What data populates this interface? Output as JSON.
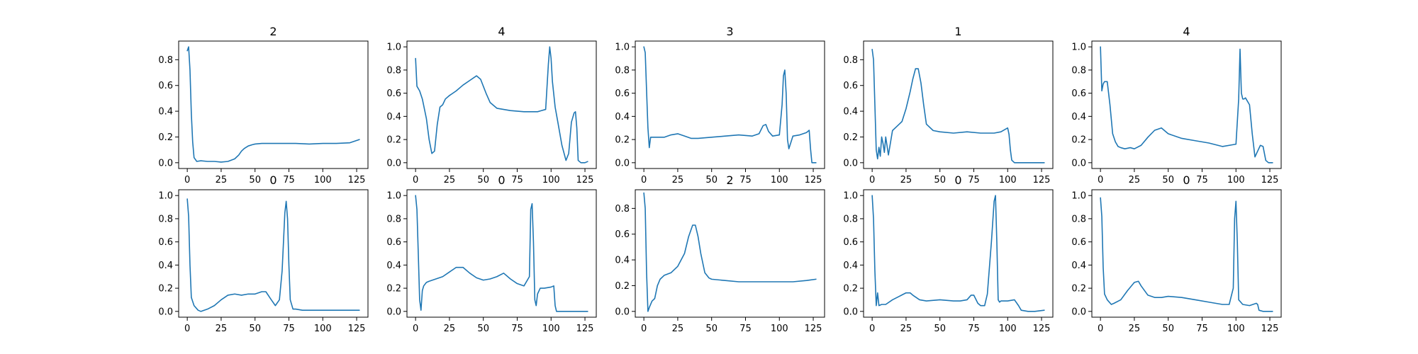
{
  "figure": {
    "line_color": "#1f77b4"
  },
  "chart_data": [
    {
      "type": "line",
      "title": "2",
      "xlim": [
        -6.35,
        133.35
      ],
      "ylim": [
        -0.045,
        0.945
      ],
      "xticks": [
        0,
        25,
        50,
        75,
        100,
        125
      ],
      "yticks": [
        0.0,
        0.2,
        0.4,
        0.6,
        0.8
      ],
      "x": [
        0,
        1,
        2,
        3,
        4,
        5,
        7,
        10,
        15,
        20,
        25,
        30,
        35,
        38,
        40,
        42,
        45,
        48,
        50,
        55,
        60,
        70,
        80,
        90,
        100,
        110,
        120,
        127
      ],
      "values": [
        0.87,
        0.9,
        0.72,
        0.38,
        0.16,
        0.04,
        0.01,
        0.015,
        0.01,
        0.01,
        0.005,
        0.01,
        0.03,
        0.06,
        0.09,
        0.11,
        0.13,
        0.14,
        0.145,
        0.15,
        0.15,
        0.15,
        0.15,
        0.145,
        0.15,
        0.15,
        0.155,
        0.18
      ]
    },
    {
      "type": "line",
      "title": "4",
      "xlim": [
        -6.35,
        133.35
      ],
      "ylim": [
        -0.05,
        1.05
      ],
      "xticks": [
        0,
        25,
        50,
        75,
        100,
        125
      ],
      "yticks": [
        0.0,
        0.2,
        0.4,
        0.6,
        0.8,
        1.0
      ],
      "x": [
        0,
        1,
        3,
        5,
        8,
        10,
        12,
        14,
        16,
        18,
        20,
        22,
        25,
        30,
        35,
        40,
        45,
        48,
        52,
        55,
        60,
        70,
        80,
        90,
        96,
        98,
        99,
        100,
        101,
        103,
        105,
        108,
        111,
        113,
        115,
        117,
        118,
        119,
        120,
        122,
        125,
        127
      ],
      "values": [
        0.9,
        0.66,
        0.62,
        0.55,
        0.38,
        0.2,
        0.08,
        0.1,
        0.33,
        0.48,
        0.5,
        0.55,
        0.58,
        0.62,
        0.67,
        0.71,
        0.75,
        0.72,
        0.6,
        0.52,
        0.47,
        0.45,
        0.44,
        0.44,
        0.46,
        0.85,
        1.0,
        0.9,
        0.7,
        0.48,
        0.35,
        0.15,
        0.02,
        0.08,
        0.35,
        0.43,
        0.44,
        0.3,
        0.02,
        0.0,
        0.0,
        0.01
      ]
    },
    {
      "type": "line",
      "title": "3",
      "xlim": [
        -6.35,
        133.35
      ],
      "ylim": [
        -0.05,
        1.05
      ],
      "xticks": [
        0,
        25,
        50,
        75,
        100,
        125
      ],
      "yticks": [
        0.0,
        0.2,
        0.4,
        0.6,
        0.8,
        1.0
      ],
      "x": [
        0,
        1,
        2,
        3,
        4,
        5,
        8,
        15,
        20,
        25,
        30,
        35,
        40,
        50,
        60,
        70,
        80,
        85,
        88,
        90,
        92,
        95,
        100,
        102,
        103,
        104,
        105,
        106,
        107,
        110,
        115,
        120,
        122,
        123,
        124,
        127
      ],
      "values": [
        1.0,
        0.95,
        0.62,
        0.3,
        0.13,
        0.22,
        0.22,
        0.22,
        0.24,
        0.25,
        0.23,
        0.21,
        0.21,
        0.22,
        0.23,
        0.24,
        0.23,
        0.25,
        0.32,
        0.33,
        0.27,
        0.23,
        0.24,
        0.5,
        0.75,
        0.8,
        0.6,
        0.2,
        0.12,
        0.23,
        0.24,
        0.26,
        0.28,
        0.12,
        0.0,
        0.0
      ]
    },
    {
      "type": "line",
      "title": "1",
      "xlim": [
        -6.35,
        133.35
      ],
      "ylim": [
        -0.045,
        0.945
      ],
      "xticks": [
        0,
        25,
        50,
        75,
        100,
        125
      ],
      "yticks": [
        0.0,
        0.2,
        0.4,
        0.6,
        0.8
      ],
      "x": [
        0,
        1,
        2,
        3,
        4,
        5,
        6,
        7,
        8,
        9,
        10,
        12,
        15,
        18,
        20,
        22,
        25,
        28,
        30,
        32,
        34,
        36,
        38,
        40,
        45,
        50,
        60,
        70,
        80,
        90,
        95,
        100,
        101,
        102,
        103,
        105,
        110,
        120,
        127
      ],
      "values": [
        0.88,
        0.8,
        0.45,
        0.1,
        0.03,
        0.12,
        0.05,
        0.2,
        0.15,
        0.08,
        0.2,
        0.06,
        0.25,
        0.28,
        0.3,
        0.32,
        0.42,
        0.55,
        0.65,
        0.73,
        0.73,
        0.62,
        0.45,
        0.3,
        0.25,
        0.24,
        0.23,
        0.24,
        0.23,
        0.23,
        0.24,
        0.27,
        0.22,
        0.1,
        0.02,
        0.0,
        0.0,
        0.0,
        0.0
      ]
    },
    {
      "type": "line",
      "title": "4",
      "xlim": [
        -6.35,
        133.35
      ],
      "ylim": [
        -0.05,
        1.05
      ],
      "xticks": [
        0,
        25,
        50,
        75,
        100,
        125
      ],
      "yticks": [
        0.0,
        0.2,
        0.4,
        0.6,
        0.8,
        1.0
      ],
      "x": [
        0,
        1,
        2,
        3,
        5,
        7,
        9,
        11,
        13,
        15,
        18,
        22,
        25,
        30,
        35,
        40,
        45,
        50,
        60,
        70,
        80,
        90,
        100,
        102,
        103,
        104,
        105,
        106,
        107,
        110,
        112,
        114,
        116,
        118,
        120,
        122,
        124,
        127
      ],
      "values": [
        1.0,
        0.62,
        0.68,
        0.7,
        0.7,
        0.5,
        0.25,
        0.18,
        0.14,
        0.13,
        0.12,
        0.13,
        0.12,
        0.15,
        0.22,
        0.28,
        0.3,
        0.25,
        0.21,
        0.19,
        0.17,
        0.14,
        0.16,
        0.55,
        0.98,
        0.6,
        0.55,
        0.55,
        0.56,
        0.5,
        0.25,
        0.05,
        0.1,
        0.15,
        0.14,
        0.02,
        0.0,
        0.0
      ]
    },
    {
      "type": "line",
      "title": "0",
      "xlim": [
        -6.35,
        133.35
      ],
      "ylim": [
        -0.05,
        1.05
      ],
      "xticks": [
        0,
        25,
        50,
        75,
        100,
        125
      ],
      "yticks": [
        0.0,
        0.2,
        0.4,
        0.6,
        0.8,
        1.0
      ],
      "x": [
        0,
        1,
        2,
        3,
        5,
        8,
        10,
        15,
        20,
        25,
        30,
        35,
        40,
        45,
        50,
        55,
        58,
        62,
        65,
        68,
        70,
        72,
        73,
        74,
        75,
        76,
        78,
        80,
        85,
        90,
        100,
        110,
        120,
        127
      ],
      "values": [
        0.97,
        0.82,
        0.4,
        0.12,
        0.05,
        0.01,
        0.0,
        0.02,
        0.05,
        0.1,
        0.14,
        0.15,
        0.14,
        0.15,
        0.15,
        0.17,
        0.17,
        0.1,
        0.05,
        0.1,
        0.35,
        0.85,
        0.95,
        0.8,
        0.4,
        0.1,
        0.02,
        0.02,
        0.01,
        0.01,
        0.01,
        0.01,
        0.01,
        0.01
      ]
    },
    {
      "type": "line",
      "title": "0",
      "xlim": [
        -6.35,
        133.35
      ],
      "ylim": [
        -0.05,
        1.05
      ],
      "xticks": [
        0,
        25,
        50,
        75,
        100,
        125
      ],
      "yticks": [
        0.0,
        0.2,
        0.4,
        0.6,
        0.8,
        1.0
      ],
      "x": [
        0,
        1,
        2,
        3,
        4,
        5,
        6,
        8,
        10,
        15,
        20,
        25,
        30,
        35,
        40,
        45,
        50,
        55,
        60,
        65,
        70,
        75,
        80,
        84,
        85,
        86,
        87,
        88,
        89,
        90,
        92,
        95,
        100,
        102,
        103,
        104,
        110,
        120,
        127
      ],
      "values": [
        1.0,
        0.88,
        0.5,
        0.1,
        0.01,
        0.18,
        0.22,
        0.25,
        0.26,
        0.28,
        0.3,
        0.34,
        0.38,
        0.38,
        0.33,
        0.29,
        0.27,
        0.28,
        0.3,
        0.33,
        0.28,
        0.24,
        0.22,
        0.3,
        0.88,
        0.93,
        0.6,
        0.1,
        0.05,
        0.15,
        0.2,
        0.2,
        0.21,
        0.22,
        0.05,
        0.0,
        0.0,
        0.0,
        0.0
      ]
    },
    {
      "type": "line",
      "title": "2",
      "xlim": [
        -6.35,
        133.35
      ],
      "ylim": [
        -0.045,
        0.945
      ],
      "xticks": [
        0,
        25,
        50,
        75,
        100,
        125
      ],
      "yticks": [
        0.0,
        0.2,
        0.4,
        0.6,
        0.8
      ],
      "x": [
        0,
        1,
        2,
        3,
        4,
        6,
        8,
        10,
        12,
        15,
        20,
        25,
        30,
        33,
        36,
        38,
        40,
        42,
        45,
        48,
        50,
        60,
        70,
        80,
        90,
        100,
        110,
        120,
        127
      ],
      "values": [
        0.92,
        0.8,
        0.3,
        0.0,
        0.03,
        0.08,
        0.1,
        0.2,
        0.25,
        0.28,
        0.3,
        0.35,
        0.45,
        0.58,
        0.67,
        0.67,
        0.58,
        0.45,
        0.3,
        0.26,
        0.25,
        0.24,
        0.23,
        0.23,
        0.23,
        0.23,
        0.23,
        0.24,
        0.25
      ]
    },
    {
      "type": "line",
      "title": "0",
      "xlim": [
        -6.35,
        133.35
      ],
      "ylim": [
        -0.05,
        1.05
      ],
      "xticks": [
        0,
        25,
        50,
        75,
        100,
        125
      ],
      "yticks": [
        0.0,
        0.2,
        0.4,
        0.6,
        0.8,
        1.0
      ],
      "x": [
        0,
        1,
        2,
        3,
        4,
        5,
        7,
        10,
        15,
        20,
        25,
        28,
        30,
        35,
        40,
        50,
        60,
        65,
        70,
        73,
        75,
        78,
        80,
        83,
        85,
        88,
        90,
        91,
        92,
        93,
        94,
        95,
        100,
        105,
        108,
        110,
        115,
        120,
        127
      ],
      "values": [
        1.0,
        0.8,
        0.35,
        0.05,
        0.16,
        0.05,
        0.06,
        0.06,
        0.1,
        0.13,
        0.16,
        0.16,
        0.14,
        0.1,
        0.09,
        0.1,
        0.09,
        0.09,
        0.1,
        0.14,
        0.14,
        0.07,
        0.05,
        0.05,
        0.15,
        0.6,
        0.95,
        1.0,
        0.6,
        0.1,
        0.08,
        0.09,
        0.09,
        0.1,
        0.05,
        0.01,
        0.0,
        0.0,
        0.01
      ]
    },
    {
      "type": "line",
      "title": "0",
      "xlim": [
        -6.35,
        133.35
      ],
      "ylim": [
        -0.05,
        1.05
      ],
      "xticks": [
        0,
        25,
        50,
        75,
        100,
        125
      ],
      "yticks": [
        0.0,
        0.2,
        0.4,
        0.6,
        0.8,
        1.0
      ],
      "x": [
        0,
        1,
        2,
        3,
        5,
        8,
        10,
        15,
        20,
        25,
        28,
        30,
        35,
        40,
        45,
        50,
        60,
        70,
        80,
        85,
        90,
        95,
        98,
        99,
        100,
        101,
        102,
        105,
        110,
        115,
        116,
        117,
        120,
        127
      ],
      "values": [
        0.98,
        0.82,
        0.38,
        0.15,
        0.1,
        0.06,
        0.07,
        0.1,
        0.18,
        0.25,
        0.26,
        0.22,
        0.14,
        0.12,
        0.12,
        0.13,
        0.12,
        0.1,
        0.08,
        0.07,
        0.06,
        0.06,
        0.2,
        0.8,
        0.95,
        0.6,
        0.1,
        0.06,
        0.05,
        0.07,
        0.06,
        0.01,
        0.0,
        0.0
      ]
    }
  ]
}
